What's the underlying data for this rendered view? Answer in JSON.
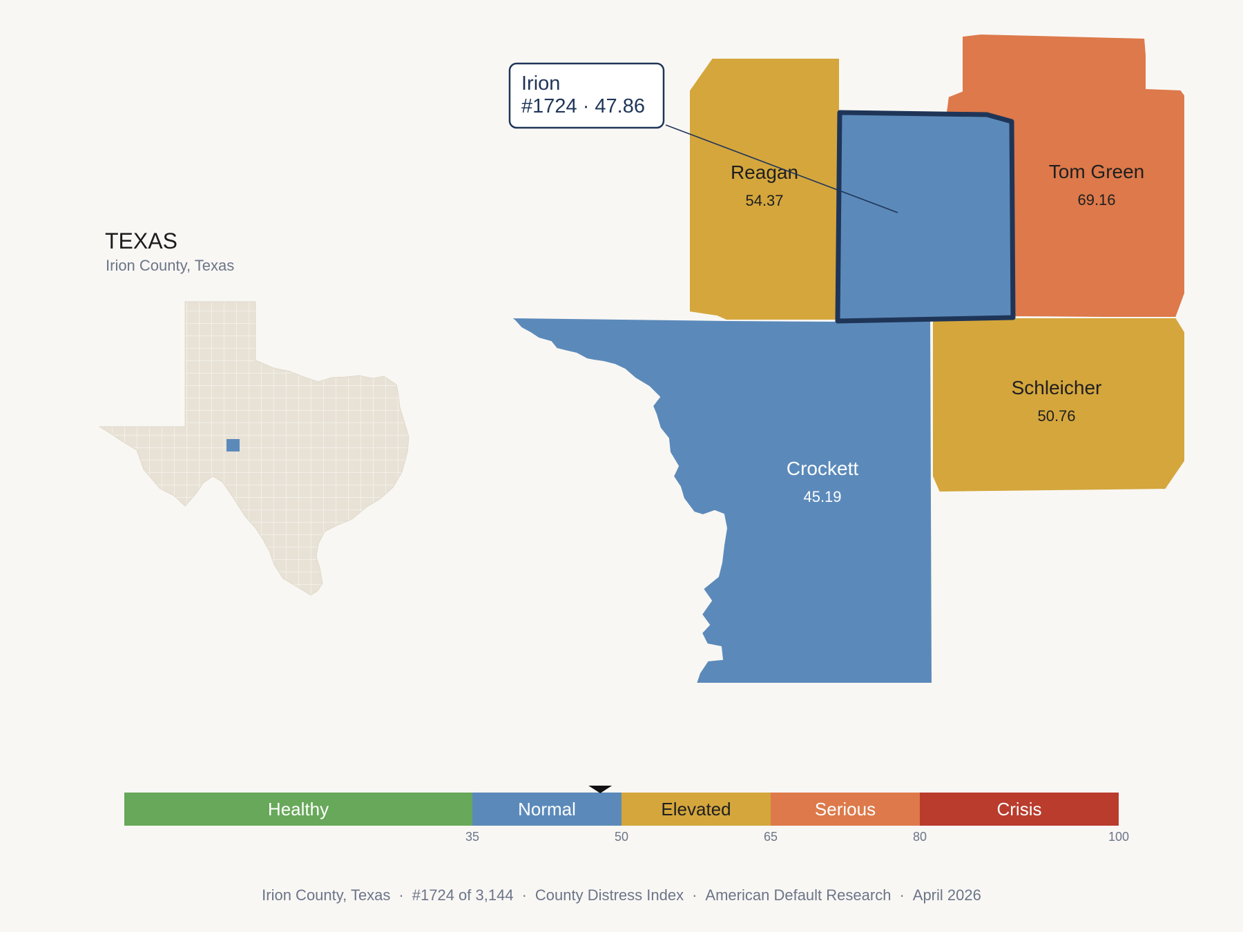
{
  "state": {
    "title": "TEXAS",
    "subtitle": "Irion County, Texas"
  },
  "callout": {
    "line1": "Irion",
    "line2": "#1724 · 47.86"
  },
  "colors": {
    "healthy": "#67a85a",
    "normal": "#5b8aba",
    "elevated": "#d4a63c",
    "serious": "#dd794a",
    "crisis": "#b93c2d",
    "highlight_border": "#1f3558",
    "inset_fill": "#e8e2d6",
    "background": "#f9f7f4"
  },
  "counties": [
    {
      "name": "Irion",
      "value": "47.86",
      "category": "normal"
    },
    {
      "name": "Reagan",
      "value": "54.37",
      "category": "elevated"
    },
    {
      "name": "Tom Green",
      "value": "69.16",
      "category": "serious"
    },
    {
      "name": "Crockett",
      "value": "45.19",
      "category": "normal"
    },
    {
      "name": "Schleicher",
      "value": "50.76",
      "category": "elevated"
    }
  ],
  "scale": {
    "segments": [
      {
        "label": "Healthy",
        "from": 0,
        "to": 35,
        "category": "healthy"
      },
      {
        "label": "Normal",
        "from": 35,
        "to": 50,
        "category": "normal"
      },
      {
        "label": "Elevated",
        "from": 50,
        "to": 65,
        "category": "elevated"
      },
      {
        "label": "Serious",
        "from": 65,
        "to": 80,
        "category": "serious"
      },
      {
        "label": "Crisis",
        "from": 80,
        "to": 100,
        "category": "crisis"
      }
    ],
    "ticks": [
      "35",
      "50",
      "65",
      "80",
      "100"
    ],
    "marker_value": 47.86
  },
  "footer": {
    "county": "Irion County, Texas",
    "rank": "#1724 of 3,144",
    "index": "County Distress Index",
    "source": "American Default Research",
    "date": "April 2026",
    "separator": "·"
  }
}
